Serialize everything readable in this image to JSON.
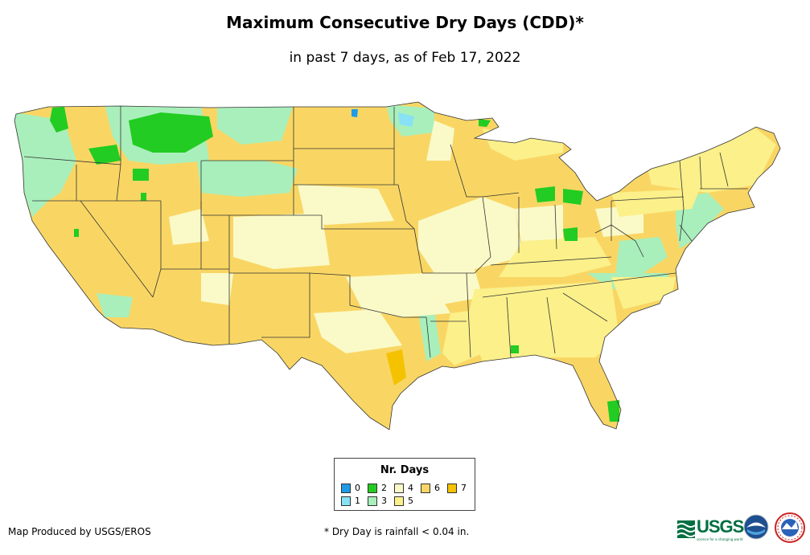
{
  "header": {
    "title": "Maximum Consecutive Dry Days (CDD)*",
    "subtitle": "in past 7 days, as of Feb 17, 2022"
  },
  "legend": {
    "title": "Nr. Days",
    "items": [
      {
        "label": "0",
        "color": "#1e9be6"
      },
      {
        "label": "1",
        "color": "#88e1f5"
      },
      {
        "label": "2",
        "color": "#22cc22"
      },
      {
        "label": "3",
        "color": "#a9efbb"
      },
      {
        "label": "4",
        "color": "#fafac8"
      },
      {
        "label": "5",
        "color": "#fbf08a"
      },
      {
        "label": "6",
        "color": "#f9d664"
      },
      {
        "label": "7",
        "color": "#f5c200"
      }
    ]
  },
  "footer": {
    "credit": "Map Produced by USGS/EROS",
    "footnote": "* Dry Day is rainfall < 0.04 in.",
    "usgs_logo_text": "USGS",
    "usgs_tagline": "science for a changing world"
  }
}
